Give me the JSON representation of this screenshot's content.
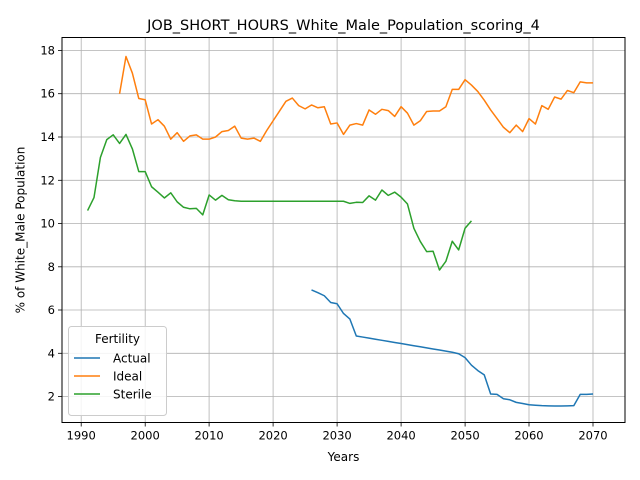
{
  "chart_data": {
    "type": "line",
    "title": "JOB_SHORT_HOURS_White_Male_Population_scoring_4",
    "xlabel": "Years",
    "ylabel": "% of White_Male Population",
    "xlim": [
      1987,
      2075
    ],
    "ylim": [
      0.8,
      18.6
    ],
    "x_ticks": [
      1990,
      2000,
      2010,
      2020,
      2030,
      2040,
      2050,
      2060,
      2070
    ],
    "y_ticks": [
      2,
      4,
      6,
      8,
      10,
      12,
      14,
      16,
      18
    ],
    "grid": true,
    "legend": {
      "title": "Fertility",
      "placement": "lower-left"
    },
    "series": [
      {
        "name": "Actual",
        "color": "#1f77b4",
        "x": [
          2026,
          2027,
          2028,
          2029,
          2030,
          2031,
          2032,
          2033,
          2034,
          2035,
          2036,
          2037,
          2038,
          2039,
          2040,
          2041,
          2042,
          2043,
          2044,
          2045,
          2046,
          2047,
          2048,
          2049,
          2050,
          2051,
          2052,
          2053,
          2054,
          2055,
          2056,
          2057,
          2058,
          2059,
          2060,
          2061,
          2062,
          2063,
          2064,
          2065,
          2066,
          2067,
          2068,
          2069,
          2070
        ],
        "y": [
          6.93,
          6.8,
          6.66,
          6.35,
          6.29,
          5.84,
          5.58,
          4.8,
          4.75,
          4.7,
          4.65,
          4.6,
          4.55,
          4.5,
          4.45,
          4.4,
          4.35,
          4.3,
          4.25,
          4.2,
          4.15,
          4.1,
          4.05,
          3.98,
          3.8,
          3.45,
          3.2,
          3.0,
          2.12,
          2.1,
          1.9,
          1.85,
          1.73,
          1.68,
          1.62,
          1.6,
          1.58,
          1.57,
          1.56,
          1.56,
          1.57,
          1.58,
          2.1,
          2.1,
          2.12
        ]
      },
      {
        "name": "Ideal",
        "color": "#ff7f0e",
        "x": [
          1996,
          1997,
          1998,
          1999,
          2000,
          2001,
          2002,
          2003,
          2004,
          2005,
          2006,
          2007,
          2008,
          2009,
          2010,
          2011,
          2012,
          2013,
          2014,
          2015,
          2016,
          2017,
          2018,
          2019,
          2020,
          2021,
          2022,
          2023,
          2024,
          2025,
          2026,
          2027,
          2028,
          2029,
          2030,
          2031,
          2032,
          2033,
          2034,
          2035,
          2036,
          2037,
          2038,
          2039,
          2040,
          2041,
          2042,
          2043,
          2044,
          2045,
          2046,
          2047,
          2048,
          2049,
          2050,
          2051,
          2052,
          2053,
          2054,
          2055,
          2056,
          2057,
          2058,
          2059,
          2060,
          2061,
          2062,
          2063,
          2064,
          2065,
          2066,
          2067,
          2068,
          2069,
          2070
        ],
        "y": [
          16.0,
          17.72,
          16.95,
          15.78,
          15.72,
          14.6,
          14.8,
          14.5,
          13.9,
          14.2,
          13.8,
          14.05,
          14.1,
          13.9,
          13.9,
          14.0,
          14.25,
          14.3,
          14.5,
          13.95,
          13.9,
          13.95,
          13.8,
          14.3,
          14.75,
          15.2,
          15.65,
          15.8,
          15.45,
          15.3,
          15.48,
          15.35,
          15.4,
          14.6,
          14.65,
          14.12,
          14.55,
          14.62,
          14.55,
          15.25,
          15.05,
          15.28,
          15.22,
          14.95,
          15.4,
          15.1,
          14.55,
          14.75,
          15.18,
          15.2,
          15.2,
          15.4,
          16.2,
          16.2,
          16.65,
          16.4,
          16.1,
          15.7,
          15.25,
          14.85,
          14.45,
          14.2,
          14.55,
          14.25,
          14.85,
          14.6,
          15.45,
          15.28,
          15.85,
          15.75,
          16.15,
          16.05,
          16.55,
          16.5,
          16.5
        ]
      },
      {
        "name": "Sterile",
        "color": "#2ca02c",
        "x": [
          1991,
          1992,
          1993,
          1994,
          1995,
          1996,
          1997,
          1998,
          1999,
          2000,
          2001,
          2002,
          2003,
          2004,
          2005,
          2006,
          2007,
          2008,
          2009,
          2010,
          2011,
          2012,
          2013,
          2014,
          2015,
          2016,
          2017,
          2018,
          2019,
          2020,
          2021,
          2022,
          2023,
          2024,
          2025,
          2026,
          2027,
          2028,
          2029,
          2030,
          2031,
          2032,
          2033,
          2034,
          2035,
          2036,
          2037,
          2038,
          2039,
          2040,
          2041,
          2042,
          2043,
          2044,
          2045,
          2046,
          2047,
          2048,
          2049,
          2050,
          2051
        ],
        "y": [
          10.6,
          11.2,
          13.05,
          13.88,
          14.1,
          13.7,
          14.12,
          13.45,
          12.4,
          12.4,
          11.7,
          11.45,
          11.18,
          11.42,
          11.0,
          10.75,
          10.68,
          10.7,
          10.4,
          11.32,
          11.08,
          11.3,
          11.1,
          11.05,
          11.03,
          11.03,
          11.03,
          11.03,
          11.03,
          11.03,
          11.03,
          11.03,
          11.03,
          11.03,
          11.03,
          11.03,
          11.03,
          11.03,
          11.03,
          11.03,
          11.03,
          10.93,
          10.98,
          10.97,
          11.28,
          11.08,
          11.55,
          11.3,
          11.45,
          11.22,
          10.9,
          9.78,
          9.17,
          8.7,
          8.72,
          7.85,
          8.25,
          9.18,
          8.78,
          9.78,
          10.12
        ]
      }
    ]
  }
}
